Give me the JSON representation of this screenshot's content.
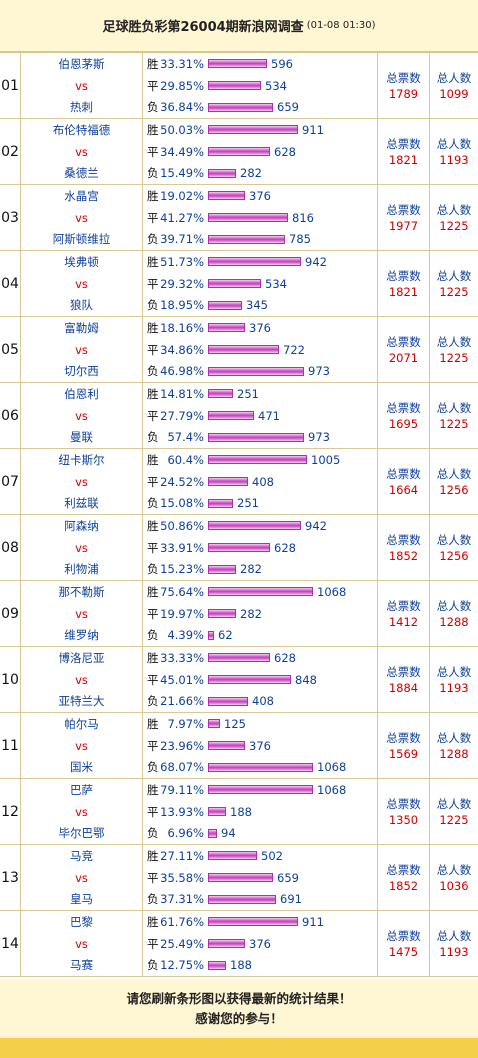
{
  "header": {
    "title": "足球胜负彩第26004期新浪网调查",
    "date": "(01-08 01:30)"
  },
  "labels": {
    "win": "胜",
    "draw": "平",
    "lose": "负",
    "vs": "vs",
    "total_votes": "总票数",
    "total_people": "总人数"
  },
  "max_count": 1068,
  "matches": [
    {
      "num": "01",
      "home": "伯恩茅斯",
      "away": "热刺",
      "win": {
        "pct": "33.31%",
        "count": 596
      },
      "draw": {
        "pct": "29.85%",
        "count": 534
      },
      "lose": {
        "pct": "36.84%",
        "count": 659
      },
      "votes": "1789",
      "people": "1099"
    },
    {
      "num": "02",
      "home": "布伦特福德",
      "away": "桑德兰",
      "win": {
        "pct": "50.03%",
        "count": 911
      },
      "draw": {
        "pct": "34.49%",
        "count": 628
      },
      "lose": {
        "pct": "15.49%",
        "count": 282
      },
      "votes": "1821",
      "people": "1193"
    },
    {
      "num": "03",
      "home": "水晶宫",
      "away": "阿斯顿维拉",
      "win": {
        "pct": "19.02%",
        "count": 376
      },
      "draw": {
        "pct": "41.27%",
        "count": 816
      },
      "lose": {
        "pct": "39.71%",
        "count": 785
      },
      "votes": "1977",
      "people": "1225"
    },
    {
      "num": "04",
      "home": "埃弗顿",
      "away": "狼队",
      "win": {
        "pct": "51.73%",
        "count": 942
      },
      "draw": {
        "pct": "29.32%",
        "count": 534
      },
      "lose": {
        "pct": "18.95%",
        "count": 345
      },
      "votes": "1821",
      "people": "1225"
    },
    {
      "num": "05",
      "home": "富勒姆",
      "away": "切尔西",
      "win": {
        "pct": "18.16%",
        "count": 376
      },
      "draw": {
        "pct": "34.86%",
        "count": 722
      },
      "lose": {
        "pct": "46.98%",
        "count": 973
      },
      "votes": "2071",
      "people": "1225"
    },
    {
      "num": "06",
      "home": "伯恩利",
      "away": "曼联",
      "win": {
        "pct": "14.81%",
        "count": 251
      },
      "draw": {
        "pct": "27.79%",
        "count": 471
      },
      "lose": {
        "pct": "57.4%",
        "count": 973
      },
      "votes": "1695",
      "people": "1225"
    },
    {
      "num": "07",
      "home": "纽卡斯尔",
      "away": "利兹联",
      "win": {
        "pct": "60.4%",
        "count": 1005
      },
      "draw": {
        "pct": "24.52%",
        "count": 408
      },
      "lose": {
        "pct": "15.08%",
        "count": 251
      },
      "votes": "1664",
      "people": "1256"
    },
    {
      "num": "08",
      "home": "阿森纳",
      "away": "利物浦",
      "win": {
        "pct": "50.86%",
        "count": 942
      },
      "draw": {
        "pct": "33.91%",
        "count": 628
      },
      "lose": {
        "pct": "15.23%",
        "count": 282
      },
      "votes": "1852",
      "people": "1256"
    },
    {
      "num": "09",
      "home": "那不勒斯",
      "away": "维罗纳",
      "win": {
        "pct": "75.64%",
        "count": 1068
      },
      "draw": {
        "pct": "19.97%",
        "count": 282
      },
      "lose": {
        "pct": "4.39%",
        "count": 62
      },
      "votes": "1412",
      "people": "1288"
    },
    {
      "num": "10",
      "home": "博洛尼亚",
      "away": "亚特兰大",
      "win": {
        "pct": "33.33%",
        "count": 628
      },
      "draw": {
        "pct": "45.01%",
        "count": 848
      },
      "lose": {
        "pct": "21.66%",
        "count": 408
      },
      "votes": "1884",
      "people": "1193"
    },
    {
      "num": "11",
      "home": "帕尔马",
      "away": "国米",
      "win": {
        "pct": "7.97%",
        "count": 125
      },
      "draw": {
        "pct": "23.96%",
        "count": 376
      },
      "lose": {
        "pct": "68.07%",
        "count": 1068
      },
      "votes": "1569",
      "people": "1288"
    },
    {
      "num": "12",
      "home": "巴萨",
      "away": "毕尔巴鄂",
      "win": {
        "pct": "79.11%",
        "count": 1068
      },
      "draw": {
        "pct": "13.93%",
        "count": 188
      },
      "lose": {
        "pct": "6.96%",
        "count": 94
      },
      "votes": "1350",
      "people": "1225"
    },
    {
      "num": "13",
      "home": "马竞",
      "away": "皇马",
      "win": {
        "pct": "27.11%",
        "count": 502
      },
      "draw": {
        "pct": "35.58%",
        "count": 659
      },
      "lose": {
        "pct": "37.31%",
        "count": 691
      },
      "votes": "1852",
      "people": "1036"
    },
    {
      "num": "14",
      "home": "巴黎",
      "away": "马赛",
      "win": {
        "pct": "61.76%",
        "count": 911
      },
      "draw": {
        "pct": "25.49%",
        "count": 376
      },
      "lose": {
        "pct": "12.75%",
        "count": 188
      },
      "votes": "1475",
      "people": "1193"
    }
  ],
  "footer": {
    "line1": "请您刷新条形图以获得最新的统计结果！",
    "line2": "感谢您的参与！"
  }
}
